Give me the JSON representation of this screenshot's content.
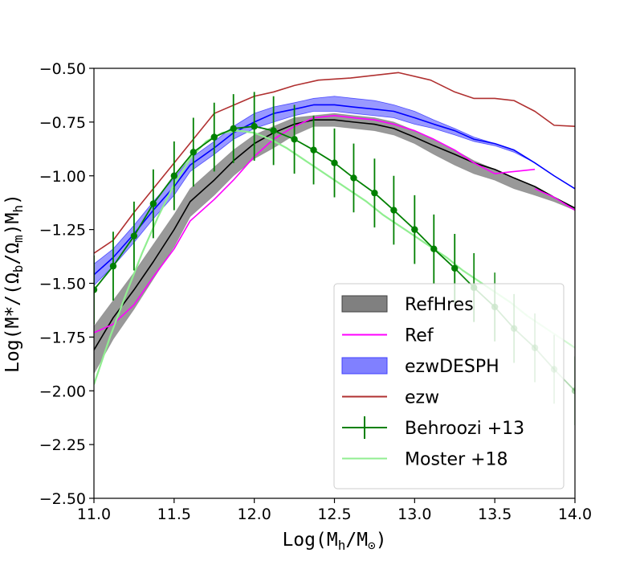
{
  "chart_data": {
    "type": "line",
    "xlabel_html": {
      "main": "Log(M",
      "sub1": "h",
      "mid": "/M",
      "sub2": "⊙",
      "end": ")"
    },
    "ylabel_html": {
      "p1": "Log(M*/(Ω",
      "s1": "b",
      "p2": "/Ω",
      "s2": "m",
      "p3": ")M",
      "s3": "h",
      "p4": ")"
    },
    "xlim": [
      11.0,
      14.0
    ],
    "ylim": [
      -2.5,
      -0.5
    ],
    "xticks": [
      {
        "v": 11.0,
        "label": "11.0"
      },
      {
        "v": 11.5,
        "label": "11.5"
      },
      {
        "v": 12.0,
        "label": "12.0"
      },
      {
        "v": 12.5,
        "label": "12.5"
      },
      {
        "v": 13.0,
        "label": "13.0"
      },
      {
        "v": 13.5,
        "label": "13.5"
      },
      {
        "v": 14.0,
        "label": "14.0"
      }
    ],
    "yticks": [
      {
        "v": -0.5,
        "label": "−0.50"
      },
      {
        "v": -0.75,
        "label": "−0.75"
      },
      {
        "v": -1.0,
        "label": "−1.00"
      },
      {
        "v": -1.25,
        "label": "−1.25"
      },
      {
        "v": -1.5,
        "label": "−1.50"
      },
      {
        "v": -1.75,
        "label": "−1.75"
      },
      {
        "v": -2.0,
        "label": "−2.00"
      },
      {
        "v": -2.25,
        "label": "−2.25"
      },
      {
        "v": -2.5,
        "label": "−2.50"
      }
    ],
    "legend_position": "lower-right",
    "series": [
      {
        "name": "RefHres",
        "kind": "band_line",
        "color": "#000000",
        "fill": "#808080",
        "fill_opacity": 0.8,
        "x": [
          11.0,
          11.12,
          11.25,
          11.37,
          11.5,
          11.6,
          11.75,
          11.87,
          12.0,
          12.12,
          12.25,
          12.37,
          12.5,
          12.62,
          12.75,
          12.87,
          13.0,
          13.12,
          13.25,
          13.37,
          13.5,
          13.62,
          13.75,
          13.87,
          14.0
        ],
        "y": [
          -1.81,
          -1.66,
          -1.53,
          -1.4,
          -1.25,
          -1.12,
          -1.02,
          -0.93,
          -0.85,
          -0.8,
          -0.76,
          -0.74,
          -0.74,
          -0.75,
          -0.76,
          -0.78,
          -0.82,
          -0.86,
          -0.9,
          -0.94,
          -0.97,
          -1.01,
          -1.05,
          -1.1,
          -1.15
        ],
        "upper": [
          -1.7,
          -1.58,
          -1.45,
          -1.32,
          -1.18,
          -1.06,
          -0.96,
          -0.88,
          -0.81,
          -0.77,
          -0.73,
          -0.72,
          -0.71,
          -0.72,
          -0.73,
          -0.75,
          -0.79,
          -0.83,
          -0.88,
          -0.93,
          -0.97,
          -1.01,
          -1.05,
          -1.1,
          -1.15
        ],
        "lower": [
          -1.92,
          -1.76,
          -1.62,
          -1.48,
          -1.33,
          -1.19,
          -1.09,
          -1.0,
          -0.92,
          -0.87,
          -0.81,
          -0.77,
          -0.77,
          -0.78,
          -0.79,
          -0.81,
          -0.85,
          -0.9,
          -0.95,
          -0.99,
          -1.02,
          -1.06,
          -1.09,
          -1.12,
          -1.16
        ]
      },
      {
        "name": "Ref",
        "kind": "line",
        "color": "#ff00ff",
        "x": [
          11.0,
          11.12,
          11.25,
          11.37,
          11.5,
          11.6,
          11.75,
          11.87,
          12.0,
          12.12,
          12.25,
          12.37,
          12.5,
          12.62,
          12.75,
          12.87,
          13.0,
          13.12,
          13.25,
          13.37,
          13.5,
          13.62,
          13.75
        ],
        "y": [
          -1.73,
          -1.69,
          -1.6,
          -1.47,
          -1.34,
          -1.21,
          -1.11,
          -1.02,
          -0.91,
          -0.83,
          -0.77,
          -0.73,
          -0.72,
          -0.73,
          -0.74,
          -0.76,
          -0.79,
          -0.83,
          -0.88,
          -0.94,
          -0.99,
          -0.98,
          -0.97
        ]
      },
      {
        "name": "Ref (high-mass tail)",
        "kind": "line",
        "color": "#ff00ff",
        "legend": false,
        "x": [
          13.75,
          13.87,
          14.0
        ],
        "y": [
          -1.06,
          -1.1,
          -1.16
        ]
      },
      {
        "name": "ezwDESPH",
        "kind": "band_line",
        "color": "#0000ff",
        "fill": "#0000ff",
        "fill_opacity": 0.4,
        "x": [
          11.0,
          11.12,
          11.25,
          11.37,
          11.5,
          11.6,
          11.75,
          11.87,
          12.0,
          12.12,
          12.25,
          12.37,
          12.5,
          12.62,
          12.75,
          12.87,
          13.0,
          13.12,
          13.25,
          13.37,
          13.5,
          13.62,
          13.75,
          13.87,
          14.0
        ],
        "y": [
          -1.46,
          -1.38,
          -1.27,
          -1.16,
          -1.05,
          -0.95,
          -0.87,
          -0.8,
          -0.75,
          -0.71,
          -0.69,
          -0.67,
          -0.67,
          -0.68,
          -0.69,
          -0.7,
          -0.73,
          -0.76,
          -0.79,
          -0.83,
          -0.85,
          -0.88,
          -0.94,
          -1.0,
          -1.06
        ],
        "upper": [
          -1.41,
          -1.34,
          -1.23,
          -1.12,
          -1.01,
          -0.92,
          -0.84,
          -0.77,
          -0.71,
          -0.68,
          -0.66,
          -0.64,
          -0.63,
          -0.64,
          -0.65,
          -0.67,
          -0.7,
          -0.74,
          -0.78,
          -0.82,
          -0.85,
          -0.88,
          -0.94,
          -1.0,
          -1.06
        ],
        "lower": [
          -1.51,
          -1.42,
          -1.31,
          -1.2,
          -1.09,
          -0.98,
          -0.9,
          -0.83,
          -0.78,
          -0.75,
          -0.72,
          -0.7,
          -0.7,
          -0.71,
          -0.72,
          -0.73,
          -0.76,
          -0.78,
          -0.81,
          -0.84,
          -0.86,
          -0.89,
          -0.94,
          -1.0,
          -1.06
        ]
      },
      {
        "name": "ezw",
        "kind": "line",
        "color": "#b03030",
        "x": [
          11.0,
          11.12,
          11.25,
          11.37,
          11.5,
          11.75,
          12.0,
          12.12,
          12.25,
          12.4,
          12.6,
          12.9,
          13.1,
          13.25,
          13.37,
          13.5,
          13.62,
          13.75,
          13.87,
          14.0
        ],
        "y": [
          -1.36,
          -1.3,
          -1.17,
          -1.06,
          -0.94,
          -0.71,
          -0.63,
          -0.61,
          -0.58,
          -0.555,
          -0.545,
          -0.52,
          -0.555,
          -0.61,
          -0.64,
          -0.64,
          -0.65,
          -0.7,
          -0.765,
          -0.77
        ]
      },
      {
        "name": "Moster +18",
        "kind": "line",
        "color": "#90ee90",
        "width": 2.2,
        "x": [
          11.0,
          11.1,
          11.2,
          11.3,
          11.4,
          11.5,
          11.6,
          11.7,
          11.8,
          11.9,
          12.0,
          12.1,
          12.2,
          12.3,
          12.4,
          12.5,
          12.6,
          12.7,
          12.8,
          12.9,
          13.0,
          13.1,
          13.2,
          13.3,
          13.4,
          13.5,
          13.6,
          13.7,
          13.8,
          13.9,
          14.0
        ],
        "y": [
          -1.97,
          -1.75,
          -1.55,
          -1.36,
          -1.19,
          -1.04,
          -0.92,
          -0.84,
          -0.8,
          -0.79,
          -0.8,
          -0.83,
          -0.87,
          -0.92,
          -0.97,
          -1.02,
          -1.07,
          -1.12,
          -1.18,
          -1.23,
          -1.28,
          -1.33,
          -1.38,
          -1.44,
          -1.49,
          -1.54,
          -1.59,
          -1.65,
          -1.7,
          -1.75,
          -1.8
        ],
        "fade_from_x": 13.25
      },
      {
        "name": "Behroozi +13",
        "kind": "errorbar_line",
        "color": "#008000",
        "width": 1.8,
        "x": [
          11.0,
          11.12,
          11.25,
          11.37,
          11.5,
          11.62,
          11.75,
          11.87,
          12.0,
          12.12,
          12.25,
          12.37,
          12.5,
          12.62,
          12.75,
          12.87,
          13.0,
          13.12,
          13.25,
          13.37,
          13.5,
          13.62,
          13.75,
          13.87,
          14.0
        ],
        "y": [
          -1.53,
          -1.42,
          -1.28,
          -1.13,
          -1.0,
          -0.89,
          -0.82,
          -0.78,
          -0.77,
          -0.79,
          -0.83,
          -0.88,
          -0.94,
          -1.01,
          -1.08,
          -1.16,
          -1.25,
          -1.34,
          -1.43,
          -1.52,
          -1.61,
          -1.71,
          -1.8,
          -1.9,
          -2.0
        ],
        "err": [
          0.16,
          0.16,
          0.16,
          0.16,
          0.16,
          0.16,
          0.16,
          0.16,
          0.16,
          0.16,
          0.16,
          0.16,
          0.16,
          0.16,
          0.16,
          0.16,
          0.16,
          0.16,
          0.16,
          0.16,
          0.16,
          0.16,
          0.16,
          0.16,
          0.16
        ],
        "fade_from_x": 13.3
      }
    ],
    "legend": [
      {
        "label": "RefHres",
        "style": "patch",
        "color": "#808080",
        "edge": "#404040"
      },
      {
        "label": "Ref",
        "style": "line",
        "color": "#ff00ff"
      },
      {
        "label": "ezwDESPH",
        "style": "patch",
        "color": "#8080ff",
        "edge": "#4040ff"
      },
      {
        "label": "ezw",
        "style": "line",
        "color": "#b03030"
      },
      {
        "label": "Behroozi +13",
        "style": "errorbar",
        "color": "#008000"
      },
      {
        "label": "Moster +18",
        "style": "line",
        "color": "#90ee90"
      }
    ]
  }
}
